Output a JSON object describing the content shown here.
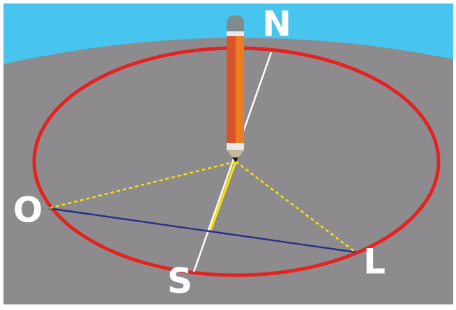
{
  "labels": {
    "north": "N",
    "south": "S",
    "west": "O",
    "east": "L"
  }
}
